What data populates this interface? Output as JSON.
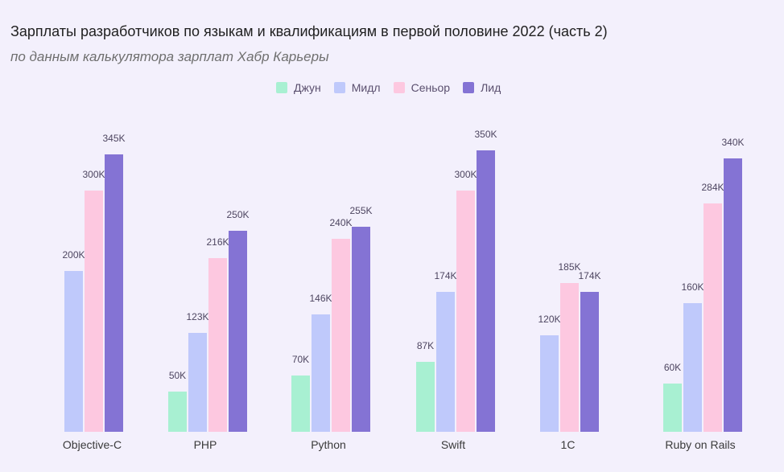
{
  "header": {
    "title": "Зарплаты разработчиков по языкам и квалификациям в первой половине 2022 (часть 2)",
    "subtitle": "по данным калькулятора зарплат Хабр Карьеры"
  },
  "colors": {
    "background": "#f3f0fc",
    "junior": "#a8f0d2",
    "middle": "#bfc9fb",
    "senior": "#fdc8e0",
    "lead": "#8473d4"
  },
  "chart_data": {
    "type": "bar",
    "categories": [
      "Objective-C",
      "PHP",
      "Python",
      "Swift",
      "1C",
      "Ruby on Rails"
    ],
    "series": [
      {
        "name": "Джун",
        "color": "#a8f0d2",
        "values": [
          null,
          50,
          70,
          87,
          null,
          60
        ],
        "labels": [
          "",
          "50K",
          "70K",
          "87K",
          "",
          "60K"
        ]
      },
      {
        "name": "Мидл",
        "color": "#bfc9fb",
        "values": [
          200,
          123,
          146,
          174,
          120,
          160
        ],
        "labels": [
          "200K",
          "123K",
          "146K",
          "174K",
          "120K",
          "160K"
        ]
      },
      {
        "name": "Сеньор",
        "color": "#fdc8e0",
        "values": [
          300,
          216,
          240,
          300,
          185,
          284
        ],
        "labels": [
          "300K",
          "216K",
          "240K",
          "300K",
          "185K",
          "284K"
        ]
      },
      {
        "name": "Лид",
        "color": "#8473d4",
        "values": [
          345,
          250,
          255,
          350,
          174,
          340
        ],
        "labels": [
          "345K",
          "250K",
          "255K",
          "350K",
          "174K",
          "340K"
        ]
      }
    ],
    "legend_position": "top-center",
    "grid": false
  }
}
